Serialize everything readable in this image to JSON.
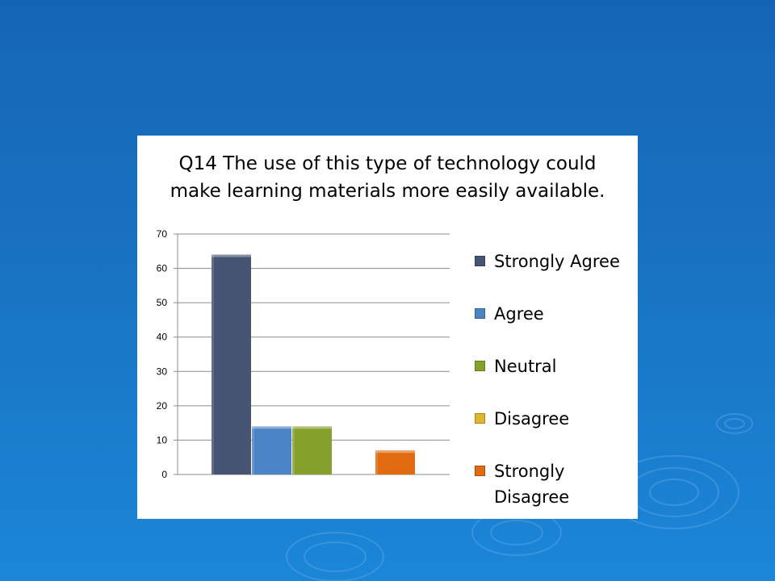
{
  "colors": {
    "background": "#1a72c2",
    "panel": "#ffffff",
    "strongly_agree": "#475372",
    "agree": "#4a84c4",
    "neutral": "#86a02e",
    "disagree": "#e0b62a",
    "strongly_disagree": "#e26a10"
  },
  "chart_data": {
    "type": "bar",
    "title": "Q14 The use of this type of technology could make learning materials more easily available.",
    "title_lines": [
      "Q14 The use of this type of technology could",
      "make learning materials more easily available."
    ],
    "categories": [
      "Strongly Agree",
      "Agree",
      "Neutral",
      "Disagree",
      "Strongly Disagree"
    ],
    "values": [
      64,
      14,
      14,
      0,
      7
    ],
    "ylim": [
      0,
      70
    ],
    "yticks": [
      0,
      10,
      20,
      30,
      40,
      50,
      60,
      70
    ],
    "grid": true,
    "legend_position": "right",
    "xlabel": "",
    "ylabel": ""
  }
}
